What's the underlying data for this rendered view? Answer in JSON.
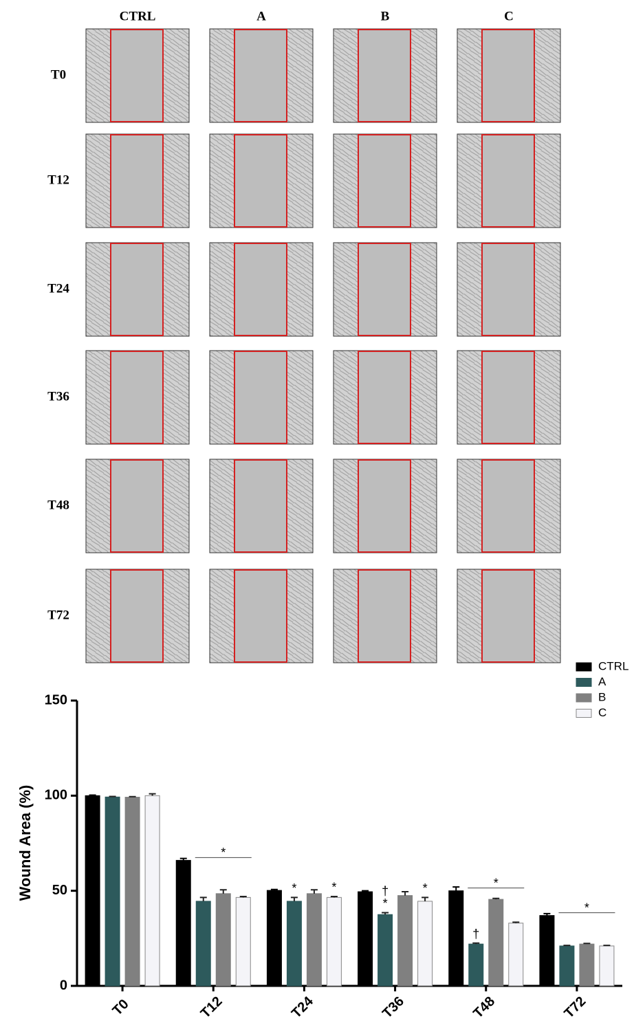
{
  "image_grid": {
    "columns": [
      "CTRL",
      "A",
      "B",
      "C"
    ],
    "rows": [
      "T0",
      "T12",
      "T24",
      "T36",
      "T48",
      "T72"
    ]
  },
  "chart_data": {
    "type": "bar",
    "y_label": "Wound Area (%)",
    "categories": [
      "T0",
      "T12",
      "T24",
      "T36",
      "T48",
      "T72"
    ],
    "series": [
      {
        "name": "CTRL",
        "color": "#000000",
        "values": [
          100,
          66,
          50.2,
          49.5,
          50,
          37
        ],
        "errors": [
          0.3,
          1,
          0.5,
          0.5,
          2,
          1
        ]
      },
      {
        "name": "A",
        "color": "#2d5a5c",
        "values": [
          99.3,
          44.5,
          44.5,
          37.5,
          22,
          21
        ],
        "errors": [
          0.3,
          2,
          2,
          1,
          0.5,
          0.3
        ]
      },
      {
        "name": "B",
        "color": "#808080",
        "values": [
          99.2,
          48.5,
          48.5,
          47.5,
          45.5,
          22
        ],
        "errors": [
          0.3,
          2,
          2,
          2,
          0.5,
          0.3
        ]
      },
      {
        "name": "C",
        "color": "#f4f4f8",
        "values": [
          100,
          46.5,
          46.5,
          44.5,
          33,
          21
        ],
        "errors": [
          1,
          0.5,
          0.5,
          2,
          0.5,
          0.3
        ]
      }
    ],
    "annotations": [
      {
        "text": "*",
        "category": "T12",
        "series": [
          "A",
          "C"
        ]
      },
      {
        "text": "*",
        "category": "T24",
        "series": [
          "A"
        ]
      },
      {
        "text": "*",
        "category": "T24",
        "series": [
          "C"
        ]
      },
      {
        "text": "*",
        "category": "T36",
        "series": [
          "A"
        ]
      },
      {
        "text": "†",
        "category": "T36",
        "series": [
          "A"
        ]
      },
      {
        "text": "*",
        "category": "T36",
        "series": [
          "C"
        ]
      },
      {
        "text": "†",
        "category": "T48",
        "series": [
          "A"
        ]
      },
      {
        "text": "*",
        "category": "T48",
        "series": [
          "A",
          "C"
        ]
      },
      {
        "text": "*",
        "category": "T72",
        "series": [
          "A",
          "C"
        ]
      }
    ],
    "ylim": [
      0,
      150
    ],
    "yticks": [
      0,
      50,
      100,
      150
    ],
    "legend": "top-right"
  }
}
